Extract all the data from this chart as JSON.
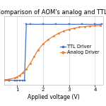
{
  "title": "Comparison of AOM's analog and TTL dri",
  "xlabel": "Applied voltage (V)",
  "xlim": [
    0.5,
    4.3
  ],
  "ylim": [
    -0.08,
    1.15
  ],
  "ttl_color": "#4472C4",
  "analog_color": "#ED7D31",
  "background_color": "#FFFFFF",
  "grid_color": "#D0D0D0",
  "ttl_x": [
    0.5,
    0.7,
    0.9,
    1.0,
    1.1,
    1.2,
    1.28,
    1.35,
    1.5,
    2.0,
    2.5,
    3.0,
    3.5,
    4.0,
    4.25
  ],
  "ttl_y": [
    0,
    0,
    0,
    0,
    0,
    0,
    0,
    1.0,
    1.0,
    1.0,
    1.0,
    1.0,
    1.0,
    1.0,
    1.0
  ],
  "analog_x": [
    0.5,
    0.7,
    0.9,
    1.0,
    1.1,
    1.2,
    1.35,
    1.5,
    1.65,
    1.8,
    2.0,
    2.2,
    2.4,
    2.6,
    2.8,
    3.0,
    3.2,
    3.4,
    3.6,
    3.8,
    4.0,
    4.2
  ],
  "analog_y": [
    0.01,
    0.02,
    0.04,
    0.06,
    0.09,
    0.13,
    0.2,
    0.3,
    0.42,
    0.54,
    0.65,
    0.73,
    0.79,
    0.84,
    0.88,
    0.91,
    0.93,
    0.95,
    0.96,
    0.97,
    0.975,
    0.98
  ],
  "legend_ttl": "TTL Driver",
  "legend_analog": "Analog Driver",
  "title_fontsize": 6.0,
  "label_fontsize": 5.5,
  "legend_fontsize": 4.8,
  "tick_fontsize": 5.0,
  "xticks": [
    1,
    2,
    3,
    4
  ]
}
